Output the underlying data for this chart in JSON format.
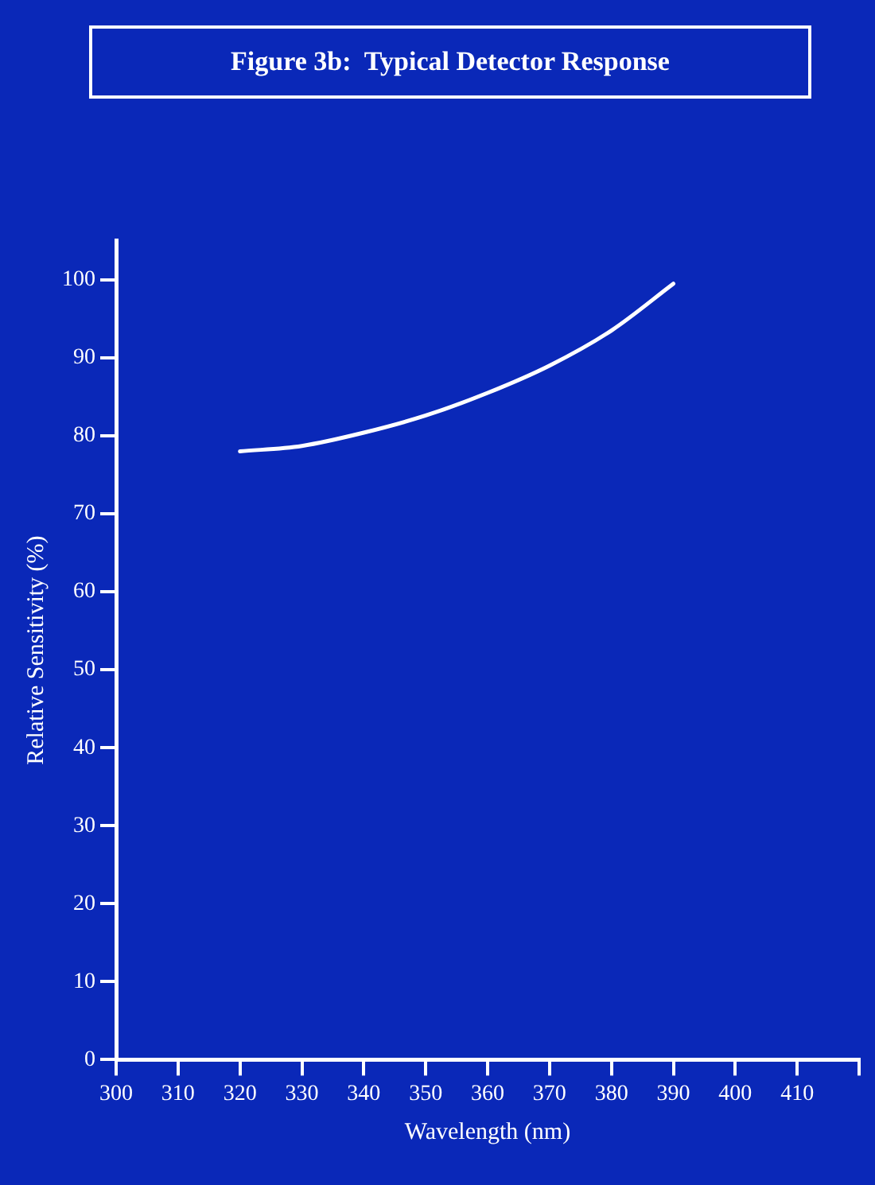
{
  "chart_data": {
    "type": "line",
    "title": "Figure 3b:  Typical Detector Response",
    "xlabel": "Wavelength (nm)",
    "ylabel": "Relative Sensitivity (%)",
    "x": [
      320,
      330,
      340,
      350,
      360,
      370,
      380,
      390
    ],
    "series": [
      {
        "color": "#ffffff",
        "values": [
          78,
          78.7,
          80.4,
          82.6,
          85.5,
          89,
          93.5,
          99.5
        ]
      }
    ],
    "xlim": [
      300,
      420
    ],
    "xticks": [
      300,
      310,
      320,
      330,
      340,
      350,
      360,
      370,
      380,
      390,
      400,
      410,
      {
        "value": 420,
        "label": null
      }
    ],
    "ylim": [
      0,
      105
    ],
    "yticks": [
      0,
      10,
      20,
      30,
      40,
      50,
      60,
      70,
      80,
      90,
      100
    ],
    "grid": false,
    "legend": false,
    "marker": "none",
    "line_style": "solid"
  }
}
